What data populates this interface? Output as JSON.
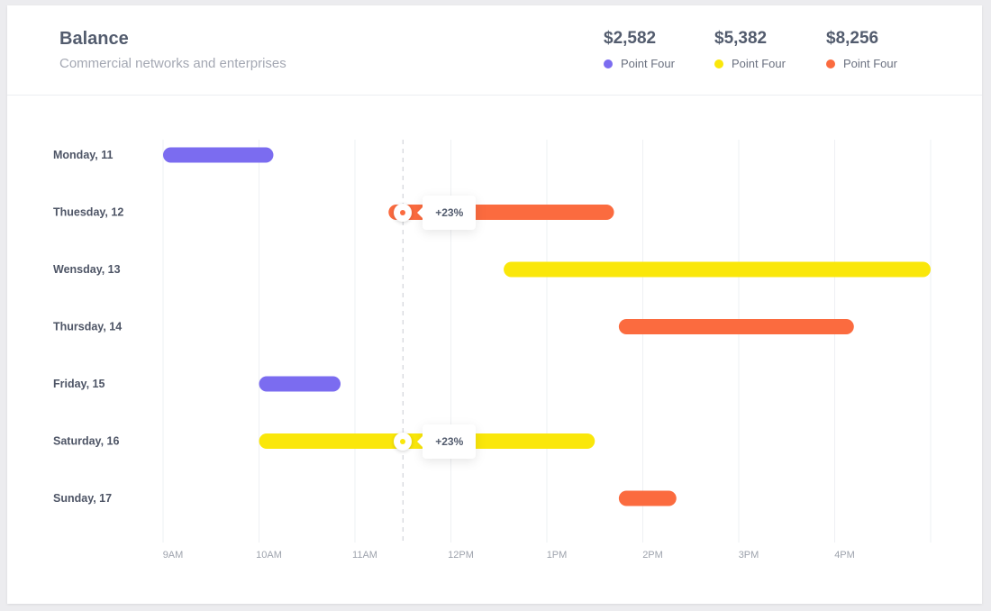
{
  "header": {
    "title": "Balance",
    "subtitle": "Commercial networks and enterprises"
  },
  "stats": [
    {
      "value": "$2,582",
      "label": "Point Four",
      "color": "#7b6cf0"
    },
    {
      "value": "$5,382",
      "label": "Point Four",
      "color": "#fae70a"
    },
    {
      "value": "$8,256",
      "label": "Point Four",
      "color": "#fb6b3f"
    }
  ],
  "chart_data": {
    "type": "gantt",
    "x_axis": {
      "ticks": [
        "9AM",
        "10AM",
        "11AM",
        "12PM",
        "1PM",
        "2PM",
        "3PM",
        "4PM"
      ],
      "range_hours": [
        9,
        17
      ]
    },
    "marker_hour": 11.5,
    "series": [
      {
        "name": "Point Four (purple)",
        "color": "#7b6cf0"
      },
      {
        "name": "Point Four (yellow)",
        "color": "#fae70a"
      },
      {
        "name": "Point Four (orange)",
        "color": "#fb6b3f"
      }
    ],
    "rows": [
      {
        "label": "Monday, 11",
        "start": 9.0,
        "end": 10.15,
        "series": 0
      },
      {
        "label": "Thuesday, 12",
        "start": 11.35,
        "end": 13.7,
        "series": 2,
        "annotation": "+23%",
        "marker": 11.5
      },
      {
        "label": "Wensday, 13",
        "start": 12.55,
        "end": 17.0,
        "series": 1
      },
      {
        "label": "Thursday, 14",
        "start": 13.75,
        "end": 16.2,
        "series": 2
      },
      {
        "label": "Friday, 15",
        "start": 10.0,
        "end": 10.85,
        "series": 0
      },
      {
        "label": "Saturday, 16",
        "start": 10.0,
        "end": 13.5,
        "series": 1,
        "annotation": "+23%",
        "marker": 11.5
      },
      {
        "label": "Sunday, 17",
        "start": 13.75,
        "end": 14.35,
        "series": 2
      }
    ]
  }
}
